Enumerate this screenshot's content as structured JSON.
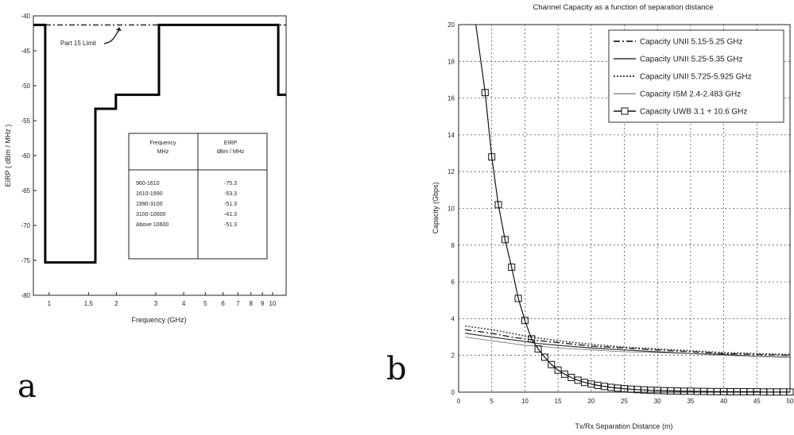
{
  "chart_data": [
    {
      "panel_label": "a",
      "type": "line",
      "xlabel": "Frequency (GHz)",
      "ylabel": "EIRP ( dBm / MHz )",
      "xscale": "log",
      "xticks": [
        "1",
        "1.5",
        "2",
        "3",
        "4",
        "5",
        "6",
        "7",
        "8",
        "9",
        "10"
      ],
      "yticks": [
        "-40",
        "-45",
        "-50",
        "-55",
        "-60",
        "-65",
        "-70",
        "-75",
        "-80"
      ],
      "ylim": [
        -80,
        -40
      ],
      "xlim": [
        0.85,
        11.5
      ],
      "annotation": "Part 15 Limit",
      "part15_limit": -41.3,
      "mask_steps": [
        {
          "x": 0.85,
          "y": -41.3
        },
        {
          "x": 0.96,
          "y": -41.3
        },
        {
          "x": 0.96,
          "y": -75.3
        },
        {
          "x": 1.61,
          "y": -75.3
        },
        {
          "x": 1.61,
          "y": -53.3
        },
        {
          "x": 1.99,
          "y": -53.3
        },
        {
          "x": 1.99,
          "y": -51.3
        },
        {
          "x": 3.1,
          "y": -51.3
        },
        {
          "x": 3.1,
          "y": -41.3
        },
        {
          "x": 10.6,
          "y": -41.3
        },
        {
          "x": 10.6,
          "y": -51.3
        },
        {
          "x": 11.5,
          "y": -51.3
        }
      ],
      "table": {
        "headers": [
          [
            "Frequency",
            "MHz"
          ],
          [
            "EIRP",
            "dBm / MHz"
          ]
        ],
        "rows": [
          [
            "960-1610",
            "-75.3"
          ],
          [
            "1610-1990",
            "-53.3"
          ],
          [
            "1990-3100",
            "-51.3"
          ],
          [
            "3100-10600",
            "-41.3"
          ],
          [
            "Above 10600",
            "-51.3"
          ]
        ]
      }
    },
    {
      "panel_label": "b",
      "type": "line",
      "title": "Channel Capacity as a function of separation distance",
      "xlabel": "Tx/Rx Separation Distance (m)",
      "ylabel": "Capacity (Gbps)",
      "xlim": [
        0,
        50
      ],
      "ylim": [
        0,
        20
      ],
      "xticks": [
        0,
        5,
        10,
        15,
        20,
        25,
        30,
        35,
        40,
        45,
        50
      ],
      "yticks": [
        0,
        2,
        4,
        6,
        8,
        10,
        12,
        14,
        16,
        18,
        20
      ],
      "grid": true,
      "legend_position": "top-right",
      "series": [
        {
          "name": "Capacity UNII 5.15-5.25 GHz",
          "style": "dashdot",
          "x": [
            1,
            3,
            5,
            8,
            10,
            12,
            15,
            20,
            25,
            30,
            35,
            40,
            45,
            50
          ],
          "values": [
            3.4,
            3.3,
            3.2,
            3.0,
            2.9,
            2.8,
            2.7,
            2.5,
            2.4,
            2.3,
            2.2,
            2.1,
            2.05,
            2.0
          ]
        },
        {
          "name": "Capacity UNII 5.25-5.35 GHz",
          "style": "solid",
          "x": [
            1,
            3,
            5,
            8,
            10,
            12,
            15,
            20,
            25,
            30,
            35,
            40,
            45,
            50
          ],
          "values": [
            3.2,
            3.1,
            3.0,
            2.85,
            2.75,
            2.65,
            2.55,
            2.4,
            2.3,
            2.2,
            2.1,
            2.05,
            1.95,
            1.9
          ]
        },
        {
          "name": "Capacity UNII 5.725-5.925 GHz",
          "style": "dotted",
          "x": [
            1,
            3,
            5,
            8,
            10,
            12,
            15,
            20,
            25,
            30,
            35,
            40,
            45,
            50
          ],
          "values": [
            3.6,
            3.5,
            3.4,
            3.2,
            3.05,
            2.95,
            2.8,
            2.6,
            2.45,
            2.35,
            2.25,
            2.15,
            2.1,
            2.05
          ]
        },
        {
          "name": "Capacity ISM 2.4-2.483 GHz",
          "style": "solid-thin",
          "x": [
            1,
            3,
            5,
            8,
            10,
            12,
            15,
            20,
            25,
            30,
            35,
            40,
            45,
            50
          ],
          "values": [
            3.0,
            2.9,
            2.8,
            2.65,
            2.55,
            2.5,
            2.4,
            2.3,
            2.2,
            2.15,
            2.1,
            2.0,
            1.95,
            1.9
          ]
        },
        {
          "name": "Capacity UWB 3.1 + 10.6 GHz",
          "style": "solid-square",
          "x": [
            4,
            5,
            6,
            7,
            8,
            9,
            10,
            11,
            12,
            13,
            14,
            15,
            16,
            17,
            18,
            19,
            20,
            21,
            22,
            23,
            24,
            25,
            26,
            27,
            28,
            29,
            30,
            31,
            32,
            33,
            34,
            35,
            36,
            37,
            38,
            39,
            40,
            41,
            42,
            43,
            44,
            45,
            46,
            47,
            48,
            49,
            50
          ],
          "values": [
            16.3,
            12.8,
            10.2,
            8.3,
            6.8,
            5.1,
            3.9,
            2.9,
            2.35,
            1.9,
            1.5,
            1.2,
            0.98,
            0.8,
            0.65,
            0.53,
            0.44,
            0.37,
            0.31,
            0.26,
            0.22,
            0.19,
            0.16,
            0.14,
            0.12,
            0.1,
            0.09,
            0.08,
            0.07,
            0.06,
            0.05,
            0.05,
            0.04,
            0.04,
            0.03,
            0.03,
            0.03,
            0.02,
            0.02,
            0.02,
            0.02,
            0.02,
            0.01,
            0.01,
            0.01,
            0.01,
            0.01
          ]
        }
      ]
    }
  ]
}
